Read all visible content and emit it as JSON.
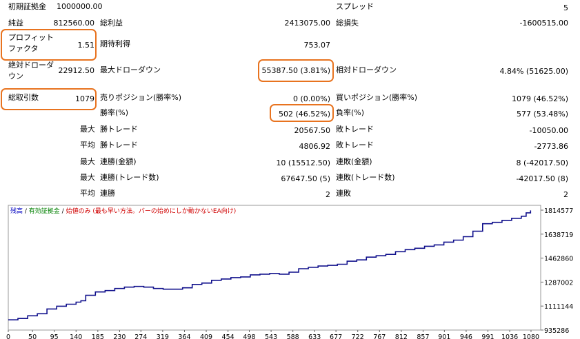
{
  "report": {
    "initial_deposit": {
      "label": "初期証拠金",
      "value": "1000000.00"
    },
    "spread": {
      "label": "スプレッド",
      "value": "5"
    },
    "net_profit": {
      "label": "純益",
      "value": "812560.00"
    },
    "gross_profit": {
      "label": "総利益",
      "value": "2413075.00"
    },
    "gross_loss": {
      "label": "総損失",
      "value": "-1600515.00"
    },
    "profit_factor": {
      "label_line1": "プロフィット",
      "label_line2": "ファクタ",
      "value": "1.51"
    },
    "expected_payoff": {
      "label": "期待利得",
      "value": "753.07"
    },
    "absolute_drawdown": {
      "label_line1": "絶対ドローダ",
      "label_line2": "ウン",
      "value": "22912.50"
    },
    "maximal_drawdown": {
      "label": "最大ドローダウン",
      "value": "55387.50 (3.81%)"
    },
    "relative_drawdown": {
      "label": "相対ドローダウン",
      "value": "4.84% (51625.00)"
    },
    "total_trades": {
      "label": "総取引数",
      "value": "1079"
    },
    "short_positions": {
      "label": "売りポジション(勝率%)",
      "value": "0 (0.00%)"
    },
    "long_positions": {
      "label": "買いポジション(勝率%)",
      "value": "1079 (46.52%)"
    },
    "profit_trades": {
      "label": "勝率(%)",
      "value": "502 (46.52%)"
    },
    "loss_trades": {
      "label": "負率(%)",
      "value": "577 (53.48%)"
    },
    "largest": {
      "prefix": "最大",
      "profit_label": "勝トレード",
      "profit_value": "20567.50",
      "loss_label": "敗トレード",
      "loss_value": "-10050.00"
    },
    "average": {
      "prefix": "平均",
      "profit_label": "勝トレード",
      "profit_value": "4806.92",
      "loss_label": "敗トレード",
      "loss_value": "-2773.86"
    },
    "max_consecutive": {
      "prefix": "最大",
      "wins_label": "連勝(金額)",
      "wins_value": "10 (15512.50)",
      "losses_label": "連敗(金額)",
      "losses_value": "8 (-42017.50)"
    },
    "maximal_consecutive": {
      "prefix": "最大",
      "profit_label": "連勝(トレード数)",
      "profit_value": "67647.50 (5)",
      "loss_label": "連敗(トレード数)",
      "loss_value": "-42017.50 (8)"
    },
    "average_consecutive": {
      "prefix": "平均",
      "wins_label": "連勝",
      "wins_value": "2",
      "losses_label": "連敗",
      "losses_value": "2"
    }
  },
  "colors": {
    "balance_line": "#10108c",
    "highlight": "#e8731f",
    "legend_balance": "#0000c0",
    "legend_equity": "#008000",
    "legend_note": "#d00000"
  },
  "chart_data": {
    "type": "line",
    "title": "",
    "legend": [
      {
        "text": "残高",
        "color": "#0000c0"
      },
      {
        "text": " / ",
        "color": "#000000"
      },
      {
        "text": "有効証拠金",
        "color": "#008000"
      },
      {
        "text": " / ",
        "color": "#000000"
      },
      {
        "text": "始値のみ (最も早い方法。バーの始めにしか動かないEA向け)",
        "color": "#d00000"
      }
    ],
    "x_ticks": [
      0,
      50,
      95,
      140,
      185,
      230,
      274,
      319,
      364,
      409,
      454,
      498,
      543,
      588,
      633,
      677,
      722,
      767,
      812,
      857,
      901,
      946,
      991,
      1036,
      1080
    ],
    "y_ticks": [
      935286,
      1111144,
      1287002,
      1462860,
      1638719,
      1814577
    ],
    "xlim": [
      0,
      1100
    ],
    "ylim": [
      935286,
      1850000
    ],
    "series": [
      {
        "color": "#10108c",
        "x": [
          0,
          20,
          40,
          60,
          80,
          100,
          120,
          140,
          150,
          160,
          180,
          200,
          220,
          240,
          260,
          280,
          300,
          320,
          340,
          360,
          380,
          400,
          420,
          440,
          460,
          480,
          500,
          520,
          540,
          560,
          580,
          600,
          620,
          640,
          660,
          680,
          700,
          720,
          740,
          760,
          780,
          800,
          820,
          840,
          860,
          880,
          900,
          920,
          940,
          960,
          980,
          1000,
          1020,
          1040,
          1060,
          1070,
          1079
        ],
        "y": [
          1010000,
          1020000,
          1040000,
          1055000,
          1090000,
          1110000,
          1125000,
          1140000,
          1150000,
          1190000,
          1215000,
          1225000,
          1240000,
          1250000,
          1255000,
          1250000,
          1240000,
          1235000,
          1235000,
          1245000,
          1270000,
          1280000,
          1300000,
          1310000,
          1320000,
          1325000,
          1340000,
          1345000,
          1350000,
          1345000,
          1360000,
          1385000,
          1395000,
          1405000,
          1410000,
          1418000,
          1440000,
          1450000,
          1470000,
          1480000,
          1490000,
          1510000,
          1525000,
          1535000,
          1550000,
          1560000,
          1580000,
          1595000,
          1620000,
          1660000,
          1715000,
          1725000,
          1740000,
          1755000,
          1770000,
          1795000,
          1812560
        ]
      }
    ]
  }
}
